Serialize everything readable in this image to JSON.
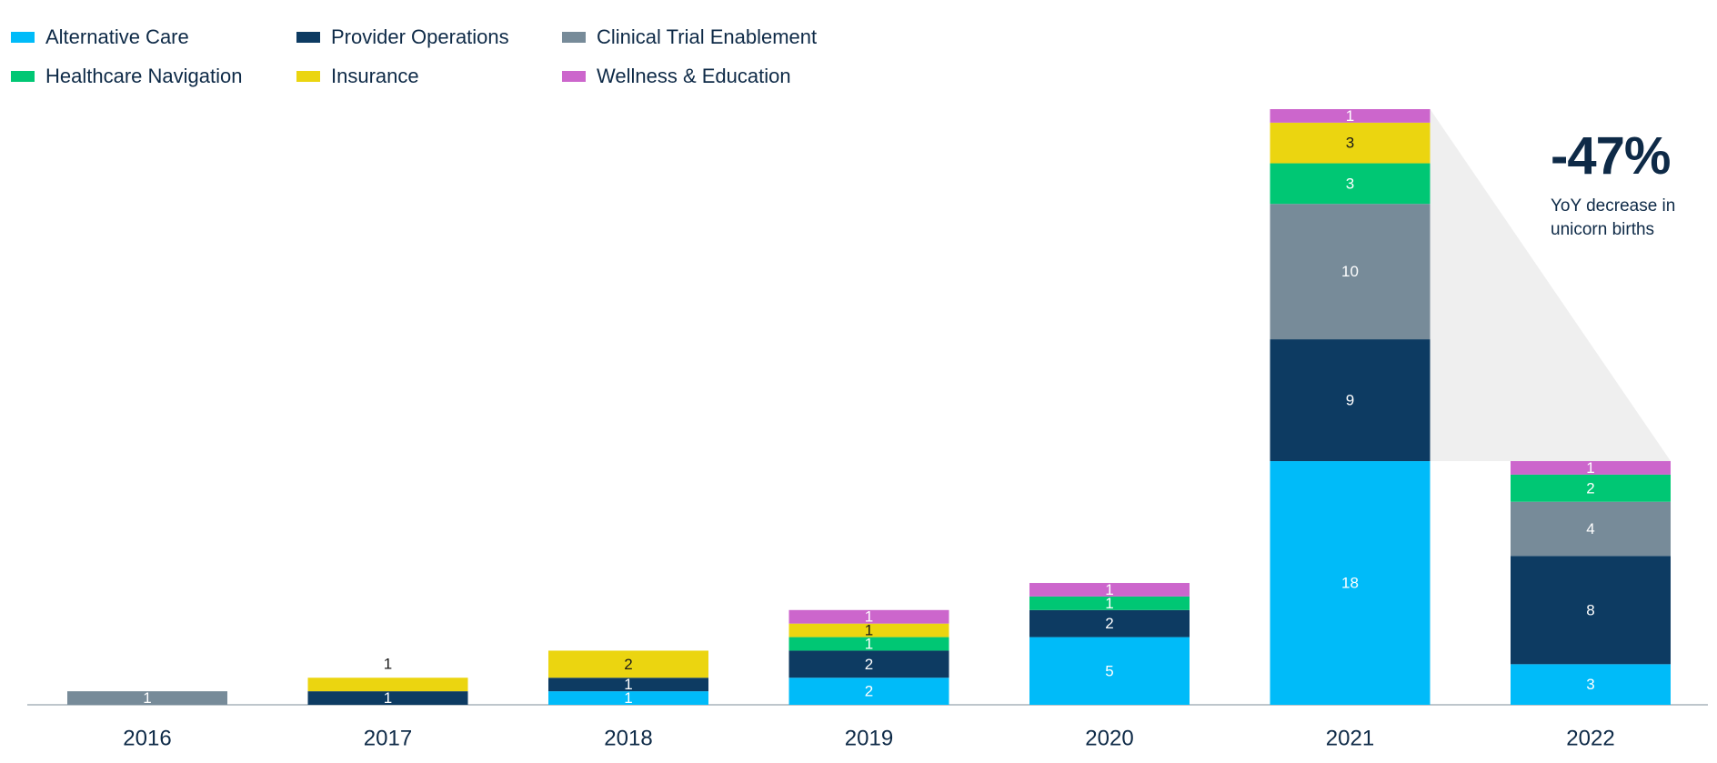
{
  "chart_data": {
    "type": "bar",
    "stacked": true,
    "categories": [
      "2016",
      "2017",
      "2018",
      "2019",
      "2020",
      "2021",
      "2022"
    ],
    "series": [
      {
        "name": "Alternative Care",
        "color": "#00bbf9",
        "label_color": "#ffffff",
        "values": [
          0,
          0,
          1,
          2,
          5,
          18,
          3
        ]
      },
      {
        "name": "Provider Operations",
        "color": "#0d3b62",
        "label_color": "#ffffff",
        "values": [
          0,
          1,
          1,
          2,
          2,
          9,
          8
        ]
      },
      {
        "name": "Clinical Trial Enablement",
        "color": "#778b99",
        "label_color": "#ffffff",
        "values": [
          1,
          0,
          0,
          0,
          0,
          10,
          4
        ]
      },
      {
        "name": "Healthcare Navigation",
        "color": "#00c774",
        "label_color": "#ffffff",
        "values": [
          0,
          0,
          0,
          1,
          1,
          3,
          2
        ]
      },
      {
        "name": "Insurance",
        "color": "#ebd510",
        "label_color": "#1a1a1a",
        "values": [
          0,
          1,
          2,
          1,
          0,
          3,
          0
        ]
      },
      {
        "name": "Wellness & Education",
        "color": "#cc66cc",
        "label_color": "#ffffff",
        "values": [
          0,
          0,
          0,
          1,
          1,
          1,
          1
        ]
      }
    ],
    "legend_order": [
      0,
      1,
      2,
      3,
      4,
      5
    ],
    "legend_position": "top-left",
    "ylim": [
      0,
      44
    ],
    "grid": false,
    "title": "",
    "xlabel": "",
    "ylabel": "",
    "highlight": {
      "from": "2021",
      "to": "2022",
      "fill": "#efefef"
    }
  },
  "callout": {
    "value": "-47%",
    "line1": "YoY decrease in",
    "line2": "unicorn births"
  }
}
